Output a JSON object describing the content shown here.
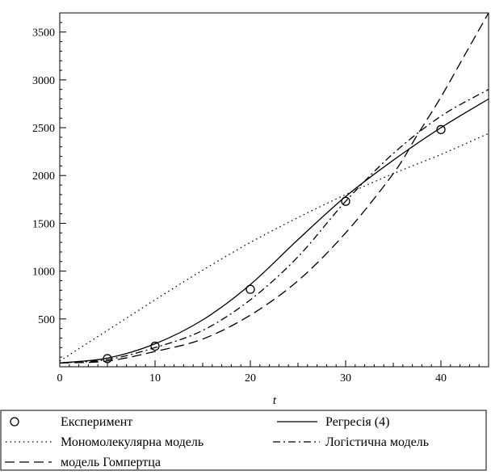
{
  "chart_data": {
    "type": "line",
    "xlabel": "t",
    "ylabel": "",
    "xlim": [
      0,
      45
    ],
    "ylim": [
      0,
      3700
    ],
    "xticks": [
      0,
      10,
      20,
      30,
      40
    ],
    "yticks": [
      500,
      1000,
      1500,
      2000,
      2500,
      3000,
      3500
    ],
    "grid": false,
    "legend_position": "bottom",
    "series": [
      {
        "name": "Експеримент",
        "kind": "points",
        "marker": "circle",
        "x": [
          5,
          10,
          20,
          30,
          40
        ],
        "y": [
          85,
          215,
          810,
          1730,
          2480
        ]
      },
      {
        "name": "Регресія (4)",
        "kind": "line",
        "dash": "solid",
        "x": [
          0,
          5,
          10,
          15,
          20,
          25,
          30,
          35,
          40,
          45
        ],
        "y": [
          40,
          90,
          240,
          490,
          860,
          1330,
          1780,
          2160,
          2500,
          2800
        ]
      },
      {
        "name": "Мономолекулярна модель",
        "kind": "line",
        "dash": "dotted",
        "x": [
          0,
          5,
          10,
          15,
          20,
          25,
          30,
          35,
          40,
          45
        ],
        "y": [
          60,
          380,
          700,
          1010,
          1300,
          1560,
          1800,
          2020,
          2220,
          2440
        ]
      },
      {
        "name": "Логістична модель",
        "kind": "line",
        "dash": "dashdot",
        "x": [
          0,
          5,
          10,
          15,
          20,
          25,
          30,
          35,
          40,
          45
        ],
        "y": [
          40,
          75,
          200,
          380,
          700,
          1150,
          1730,
          2230,
          2620,
          2900
        ]
      },
      {
        "name": "модель Гомпертца",
        "kind": "line",
        "dash": "dashed",
        "x": [
          0,
          5,
          10,
          15,
          20,
          25,
          30,
          35,
          37.5,
          40,
          42.5,
          45
        ],
        "y": [
          40,
          60,
          160,
          290,
          540,
          900,
          1400,
          2020,
          2420,
          2820,
          3260,
          3700
        ]
      }
    ]
  }
}
